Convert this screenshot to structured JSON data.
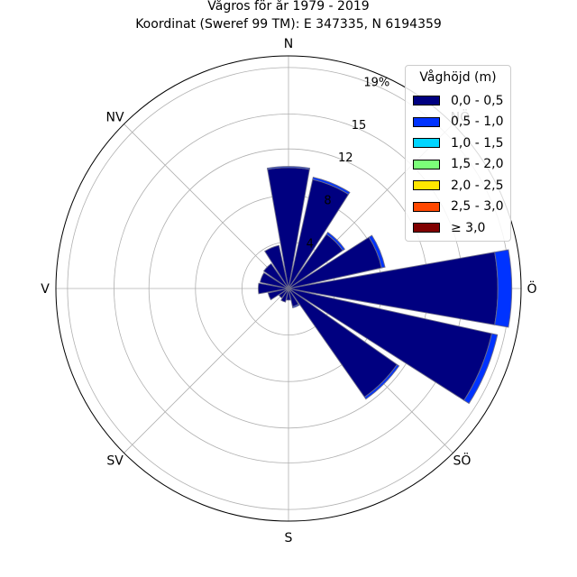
{
  "chart_data": {
    "type": "polar-bar",
    "title": "Vågros för år 1979 - 2019",
    "subtitle": "Koordinat (Sweref 99 TM): E 347335, N 6194359",
    "direction_labels": [
      "N",
      "NV",
      "V",
      "SV",
      "S",
      "SÖ",
      "Ö",
      "NÖ"
    ],
    "direction_angles": [
      0,
      315,
      270,
      225,
      180,
      135,
      90,
      45
    ],
    "radial_ticks": [
      4,
      8,
      12,
      15,
      19
    ],
    "radial_tick_labels": [
      "4",
      "8",
      "12",
      "15",
      "19%"
    ],
    "rmax": 20,
    "legend": {
      "title": "Våghöjd (m)",
      "position": "top-right",
      "items": [
        {
          "label": "0,0 - 0,5",
          "color": "#000080"
        },
        {
          "label": "0,5 - 1,0",
          "color": "#0033ff"
        },
        {
          "label": "1,0 - 1,5",
          "color": "#00d5ff"
        },
        {
          "label": "1,5 - 2,0",
          "color": "#7cff79"
        },
        {
          "label": "2,0 - 2,5",
          "color": "#ffe600"
        },
        {
          "label": "2,5 - 3,0",
          "color": "#ff4800"
        },
        {
          "label": "≥ 3,0",
          "color": "#800000"
        }
      ]
    },
    "sector_width_deg": 20,
    "sectors": [
      {
        "dir": 0,
        "values": [
          10.4,
          0.1
        ]
      },
      {
        "dir": 22.5,
        "values": [
          9.6,
          0.2
        ]
      },
      {
        "dir": 45,
        "values": [
          5.7,
          0.2
        ]
      },
      {
        "dir": 67.5,
        "values": [
          8.2,
          0.3
        ]
      },
      {
        "dir": 90,
        "values": [
          18.0,
          1.2
        ]
      },
      {
        "dir": 112.5,
        "values": [
          17.9,
          0.5
        ]
      },
      {
        "dir": 135,
        "values": [
          11.4,
          0.2
        ]
      },
      {
        "dir": 157.5,
        "values": [
          1.6,
          0.1
        ]
      },
      {
        "dir": 180,
        "values": [
          1.0
        ]
      },
      {
        "dir": 202.5,
        "values": [
          1.2
        ]
      },
      {
        "dir": 225,
        "values": [
          1.0
        ]
      },
      {
        "dir": 247.5,
        "values": [
          1.8
        ]
      },
      {
        "dir": 270,
        "values": [
          2.6
        ]
      },
      {
        "dir": 292.5,
        "values": [
          2.5
        ]
      },
      {
        "dir": 315,
        "values": [
          2.6
        ]
      },
      {
        "dir": 337.5,
        "values": [
          3.8
        ]
      }
    ]
  }
}
